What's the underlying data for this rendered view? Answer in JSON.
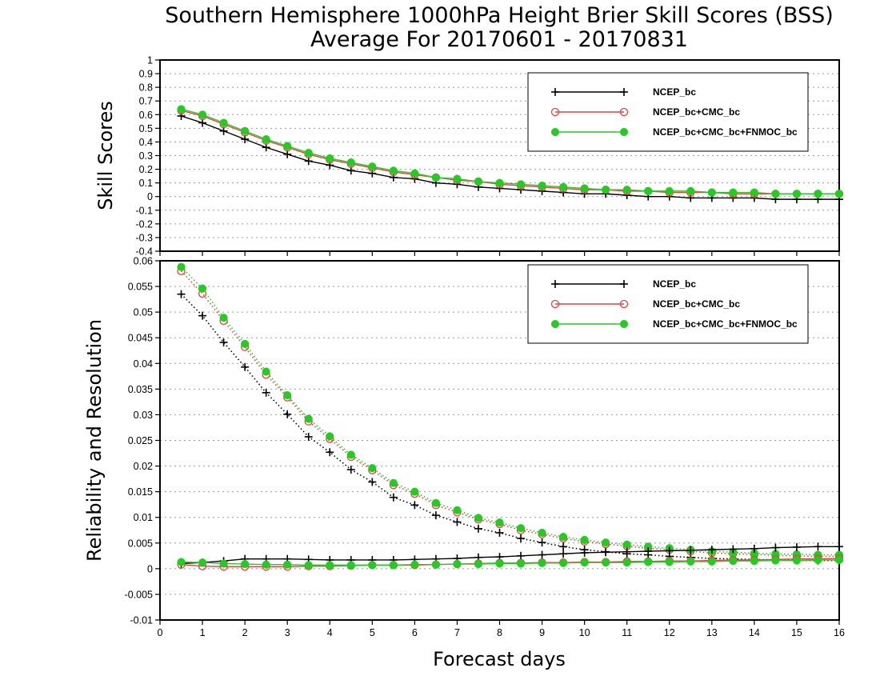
{
  "title_line1": "Southern Hemisphere 1000hPa Height Brier Skill Scores (BSS)",
  "title_line2": "Average For 20170601 - 20170831",
  "xlabel": "Forecast days",
  "colors": {
    "NCEP_bc": "#000000",
    "NCEP_bc+CMC_bc": "#e8413c",
    "NCEP_bc+CMC_bc+FNMOC_bc": "#22cc22"
  },
  "chart_data": [
    {
      "type": "line",
      "ylabel": "Skill Scores",
      "xlim": [
        0,
        16
      ],
      "ylim": [
        -0.4,
        1
      ],
      "grid": true,
      "legend_position": "top-right",
      "x_ticks": [
        "0",
        "1",
        "2",
        "3",
        "4",
        "5",
        "6",
        "7",
        "8",
        "9",
        "10",
        "11",
        "12",
        "13",
        "14",
        "15",
        "16"
      ],
      "y_ticks": [
        -0.4,
        -0.3,
        -0.2,
        -0.1,
        0,
        0.1,
        0.2,
        0.3,
        0.4,
        0.5,
        0.6,
        0.7,
        0.8,
        0.9,
        1
      ],
      "y_tick_labels": [
        "-0.4",
        "-0.3",
        "-0.2",
        "-0.1",
        "0",
        "0.1",
        "0.2",
        "0.3",
        "0.4",
        "0.5",
        "0.6",
        "0.7",
        "0.8",
        "0.9",
        "1"
      ],
      "x": [
        0.5,
        1,
        1.5,
        2,
        2.5,
        3,
        3.5,
        4,
        4.5,
        5,
        5.5,
        6,
        6.5,
        7,
        7.5,
        8,
        8.5,
        9,
        9.5,
        10,
        10.5,
        11,
        11.5,
        12,
        12.5,
        13,
        13.5,
        14,
        14.5,
        15,
        15.5,
        16
      ],
      "series": [
        {
          "name": "NCEP_bc",
          "marker": "plus",
          "style": "solid",
          "values": [
            0.59,
            0.54,
            0.48,
            0.42,
            0.36,
            0.31,
            0.26,
            0.23,
            0.19,
            0.17,
            0.14,
            0.13,
            0.1,
            0.09,
            0.07,
            0.06,
            0.05,
            0.04,
            0.03,
            0.02,
            0.02,
            0.01,
            0.0,
            0.0,
            -0.01,
            -0.01,
            -0.01,
            -0.01,
            -0.02,
            -0.02,
            -0.02,
            -0.02
          ]
        },
        {
          "name": "NCEP_bc+CMC_bc",
          "marker": "open-circle",
          "style": "solid",
          "values": [
            0.63,
            0.59,
            0.53,
            0.47,
            0.41,
            0.36,
            0.31,
            0.27,
            0.24,
            0.21,
            0.18,
            0.16,
            0.14,
            0.12,
            0.11,
            0.09,
            0.08,
            0.07,
            0.06,
            0.05,
            0.05,
            0.04,
            0.04,
            0.03,
            0.03,
            0.03,
            0.02,
            0.02,
            0.02,
            0.02,
            0.02,
            0.02
          ]
        },
        {
          "name": "NCEP_bc+CMC_bc+FNMOC_bc",
          "marker": "filled-circle",
          "style": "solid",
          "values": [
            0.64,
            0.6,
            0.54,
            0.48,
            0.42,
            0.37,
            0.32,
            0.28,
            0.25,
            0.22,
            0.19,
            0.17,
            0.14,
            0.13,
            0.11,
            0.1,
            0.09,
            0.08,
            0.07,
            0.06,
            0.05,
            0.05,
            0.04,
            0.04,
            0.04,
            0.03,
            0.03,
            0.03,
            0.02,
            0.02,
            0.02,
            0.02
          ]
        }
      ]
    },
    {
      "type": "line",
      "ylabel": "Reliability and Resolution",
      "xlim": [
        0,
        16
      ],
      "ylim": [
        -0.01,
        0.06
      ],
      "grid": true,
      "legend_position": "top-right",
      "x_ticks": [
        "0",
        "1",
        "2",
        "3",
        "4",
        "5",
        "6",
        "7",
        "8",
        "9",
        "10",
        "11",
        "12",
        "13",
        "14",
        "15",
        "16"
      ],
      "y_ticks": [
        -0.01,
        -0.005,
        0,
        0.005,
        0.01,
        0.015,
        0.02,
        0.025,
        0.03,
        0.035,
        0.04,
        0.045,
        0.05,
        0.055,
        0.06
      ],
      "y_tick_labels": [
        "-0.01",
        "-0.005",
        "0",
        "0.005",
        "0.01",
        "0.015",
        "0.02",
        "0.025",
        "0.03",
        "0.035",
        "0.04",
        "0.045",
        "0.05",
        "0.055",
        "0.06"
      ],
      "x": [
        0.5,
        1,
        1.5,
        2,
        2.5,
        3,
        3.5,
        4,
        4.5,
        5,
        5.5,
        6,
        6.5,
        7,
        7.5,
        8,
        8.5,
        9,
        9.5,
        10,
        10.5,
        11,
        11.5,
        12,
        12.5,
        13,
        13.5,
        14,
        14.5,
        15,
        15.5,
        16
      ],
      "series": [
        {
          "name": "NCEP_bc",
          "metric": "resolution",
          "marker": "plus",
          "style": "dotted",
          "values": [
            0.0535,
            0.0493,
            0.0441,
            0.0393,
            0.0343,
            0.0301,
            0.0257,
            0.0227,
            0.0193,
            0.0169,
            0.0139,
            0.0124,
            0.0104,
            0.0091,
            0.0078,
            0.007,
            0.0059,
            0.0051,
            0.0043,
            0.0037,
            0.0033,
            0.0029,
            0.0027,
            0.0024,
            0.0022,
            0.002,
            0.0019,
            0.0018,
            0.0017,
            0.0016,
            0.0016,
            0.0016
          ]
        },
        {
          "name": "NCEP_bc+CMC_bc",
          "metric": "resolution",
          "marker": "open-circle",
          "style": "dotted",
          "values": [
            0.058,
            0.0536,
            0.0483,
            0.0432,
            0.0378,
            0.0334,
            0.0287,
            0.0253,
            0.0218,
            0.0192,
            0.0163,
            0.0146,
            0.0124,
            0.011,
            0.0096,
            0.0087,
            0.0075,
            0.0067,
            0.0059,
            0.0053,
            0.0048,
            0.0044,
            0.004,
            0.0037,
            0.0034,
            0.0031,
            0.0029,
            0.0028,
            0.0026,
            0.0025,
            0.0024,
            0.0024
          ]
        },
        {
          "name": "NCEP_bc+CMC_bc+FNMOC_bc",
          "metric": "resolution",
          "marker": "filled-circle",
          "style": "dotted",
          "values": [
            0.0588,
            0.0546,
            0.0489,
            0.0438,
            0.0384,
            0.0338,
            0.0292,
            0.0258,
            0.0222,
            0.0196,
            0.0167,
            0.015,
            0.0128,
            0.0114,
            0.0099,
            0.009,
            0.0079,
            0.007,
            0.0062,
            0.0056,
            0.0051,
            0.0047,
            0.0043,
            0.004,
            0.0037,
            0.0034,
            0.0032,
            0.003,
            0.0029,
            0.0028,
            0.0027,
            0.0027
          ]
        },
        {
          "name": "NCEP_bc",
          "metric": "reliability",
          "marker": "plus",
          "style": "solid",
          "values": [
            0.001,
            0.0012,
            0.0015,
            0.0019,
            0.0019,
            0.0019,
            0.0018,
            0.0017,
            0.0017,
            0.0017,
            0.0017,
            0.0018,
            0.0019,
            0.002,
            0.0022,
            0.0023,
            0.0025,
            0.0027,
            0.0029,
            0.0031,
            0.0032,
            0.0033,
            0.0034,
            0.0035,
            0.0036,
            0.0037,
            0.0038,
            0.0039,
            0.0041,
            0.0042,
            0.0043,
            0.0043
          ]
        },
        {
          "name": "NCEP_bc+CMC_bc",
          "metric": "reliability",
          "marker": "open-circle",
          "style": "solid",
          "values": [
            0.0008,
            0.0005,
            0.0004,
            0.0004,
            0.0004,
            0.0004,
            0.0005,
            0.0005,
            0.0006,
            0.0007,
            0.0007,
            0.0007,
            0.0008,
            0.0009,
            0.001,
            0.0011,
            0.0011,
            0.0012,
            0.0012,
            0.0013,
            0.0013,
            0.0014,
            0.0014,
            0.0015,
            0.0015,
            0.0016,
            0.0017,
            0.0017,
            0.0018,
            0.0019,
            0.0019,
            0.002
          ]
        },
        {
          "name": "NCEP_bc+CMC_bc+FNMOC_bc",
          "metric": "reliability",
          "marker": "filled-circle",
          "style": "solid",
          "values": [
            0.0013,
            0.0012,
            0.001,
            0.0009,
            0.0008,
            0.0008,
            0.0007,
            0.0007,
            0.0007,
            0.0007,
            0.0007,
            0.0008,
            0.0008,
            0.0009,
            0.0009,
            0.001,
            0.001,
            0.0011,
            0.0011,
            0.0012,
            0.0012,
            0.0012,
            0.0013,
            0.0013,
            0.0014,
            0.0014,
            0.0015,
            0.0015,
            0.0016,
            0.0016,
            0.0017,
            0.0017
          ]
        }
      ]
    }
  ]
}
